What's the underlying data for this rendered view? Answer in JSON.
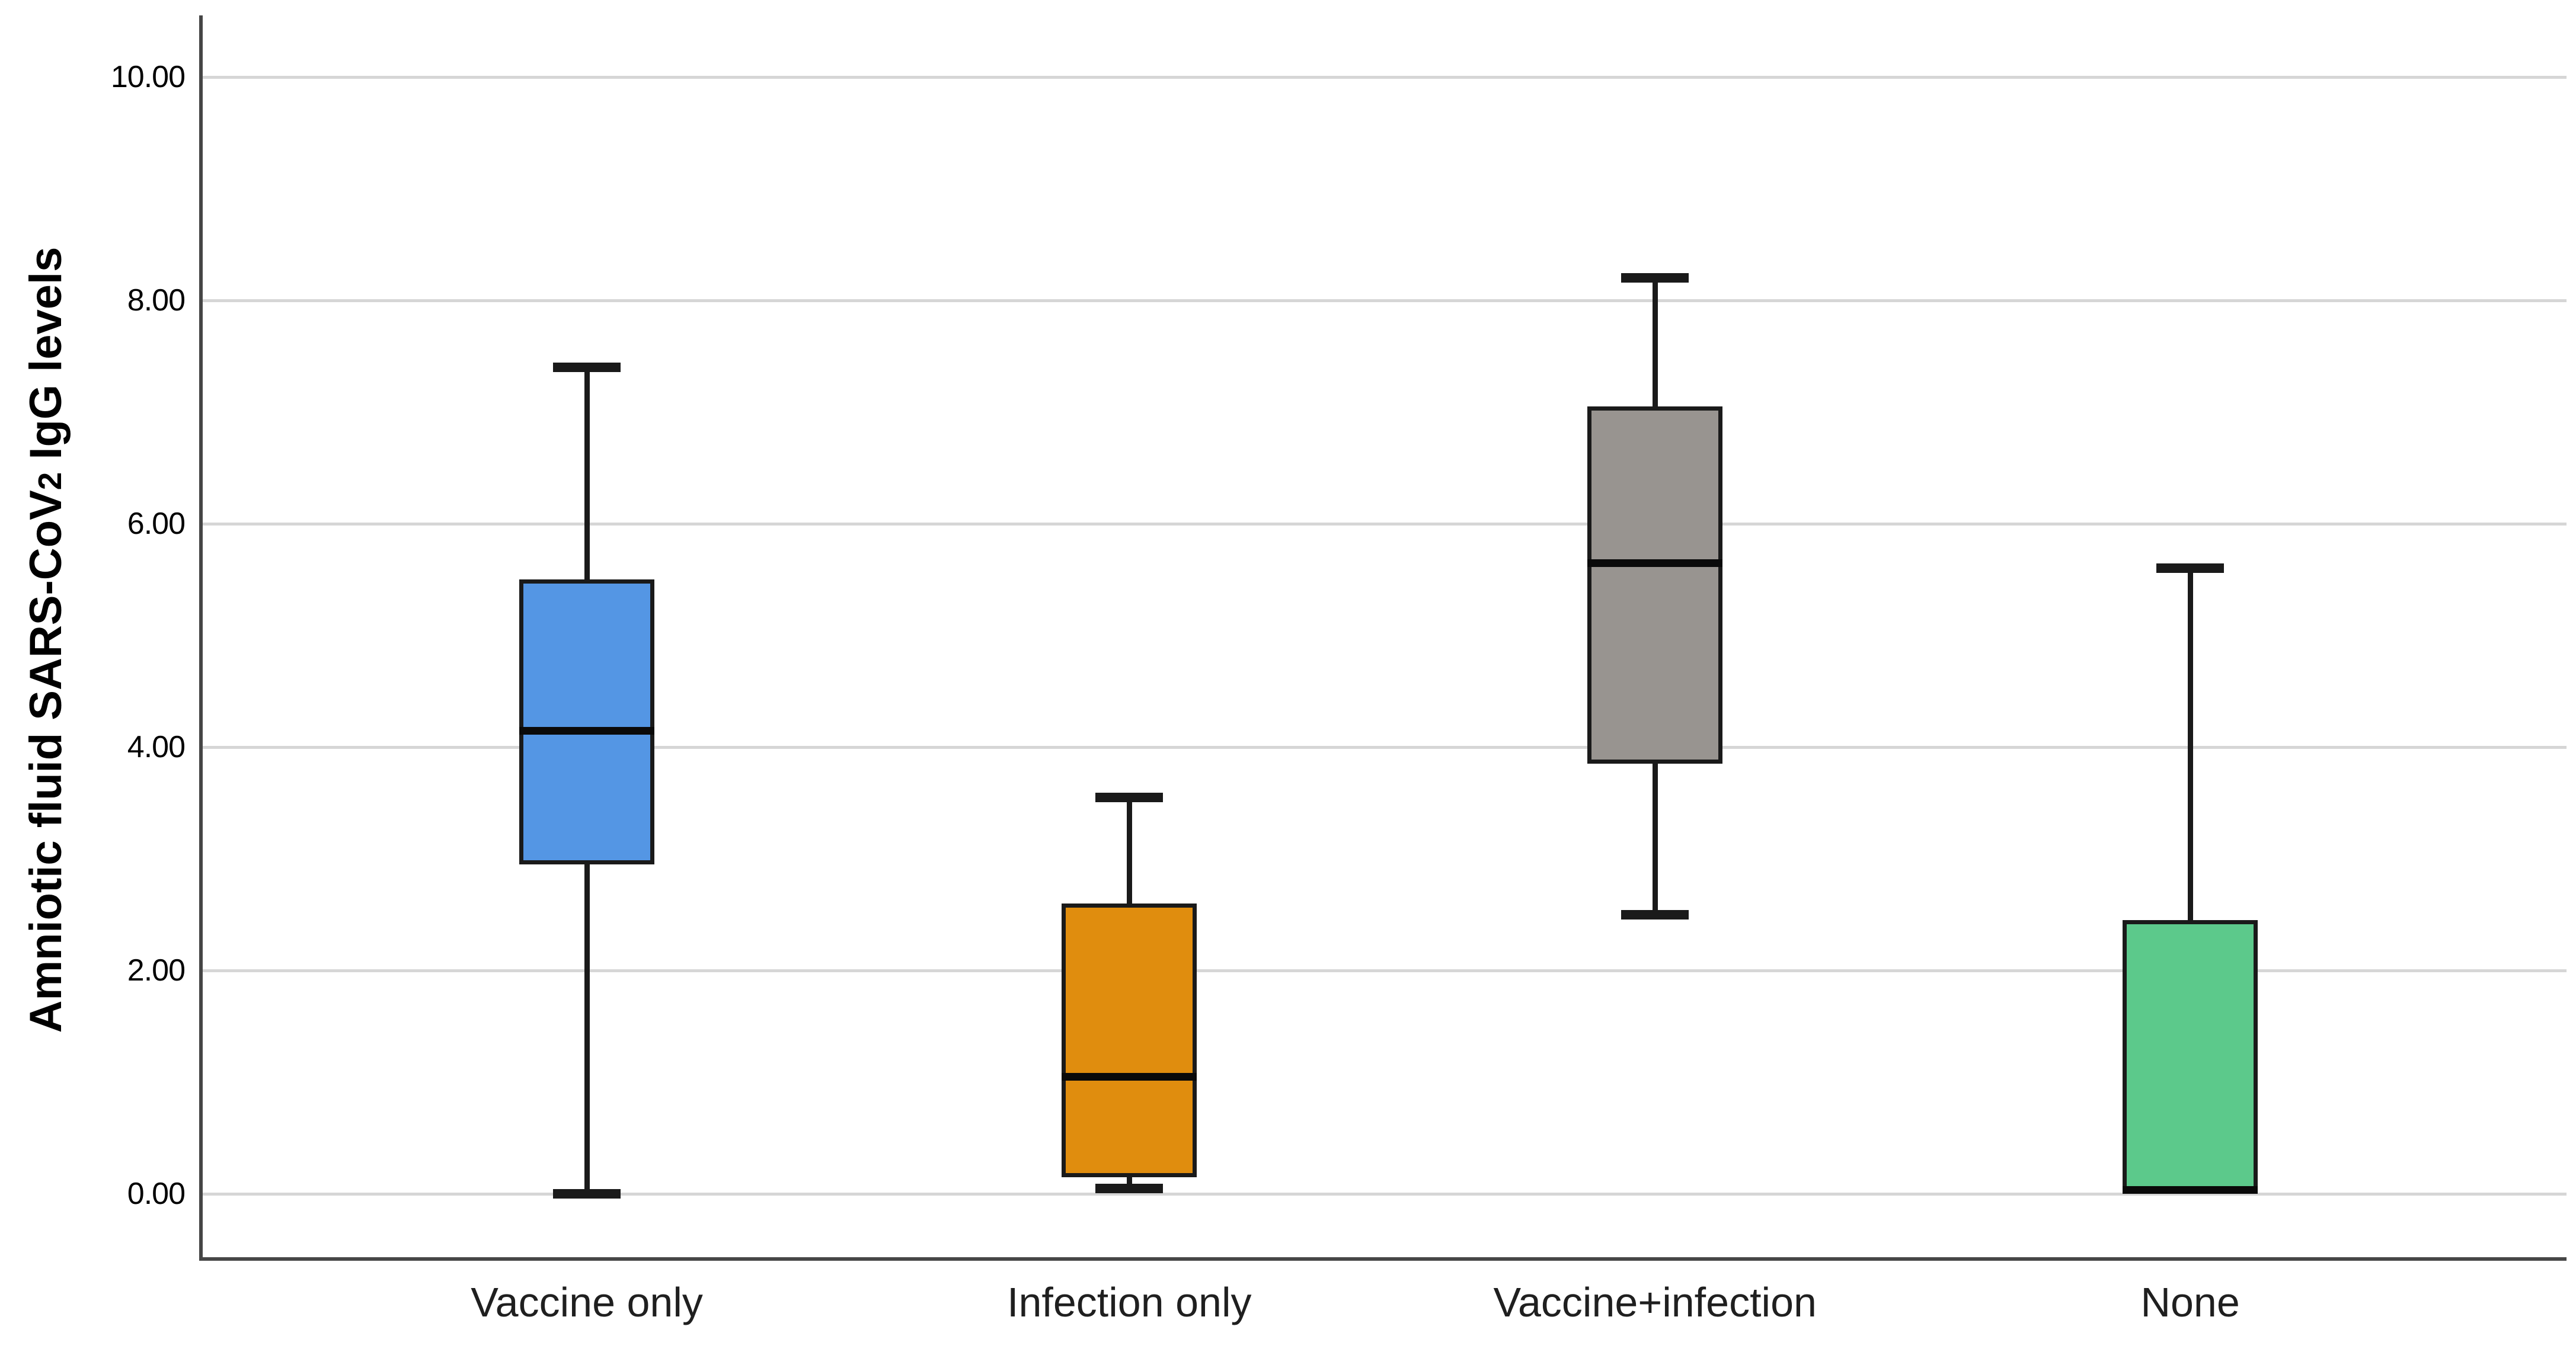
{
  "figure": {
    "y_axis_title": {
      "pre": "Amniotic fluid SARS-CoV",
      "sub": "2",
      "post": " IgG levels",
      "full": "Amniotic fluid SARS-CoV2 IgG levels"
    }
  },
  "chart_data": {
    "type": "boxplot",
    "title": "",
    "xlabel": "",
    "ylabel": "Amniotic fluid SARS-CoV2 IgG levels",
    "ylim": [
      -0.55,
      10.4
    ],
    "grid": true,
    "legend": "none",
    "yticks": [
      {
        "value": 0,
        "label": "0.00"
      },
      {
        "value": 2,
        "label": "2.00"
      },
      {
        "value": 4,
        "label": "4.00"
      },
      {
        "value": 6,
        "label": "6.00"
      },
      {
        "value": 8,
        "label": "8.00"
      },
      {
        "value": 10,
        "label": "10.00"
      }
    ],
    "categories": [
      "Vaccine only",
      "Infection only",
      "Vaccine+infection",
      "None"
    ],
    "series": [
      {
        "category": "Vaccine only",
        "color": "#5496E4",
        "whisker_low": 0.0,
        "q1": 2.95,
        "median": 4.15,
        "q3": 5.5,
        "whisker_high": 7.4
      },
      {
        "category": "Infection only",
        "color": "#E08D0E",
        "whisker_low": 0.05,
        "q1": 0.15,
        "median": 1.05,
        "q3": 2.6,
        "whisker_high": 3.55
      },
      {
        "category": "Vaccine+infection",
        "color": "#989490",
        "whisker_low": 2.5,
        "q1": 3.85,
        "median": 5.65,
        "q3": 7.05,
        "whisker_high": 8.2
      },
      {
        "category": "None",
        "color": "#5CC98B",
        "whisker_low": 0.0,
        "q1": 0.0,
        "median": 0.0,
        "q3": 2.45,
        "whisker_high": 5.6
      }
    ],
    "colors": {
      "box_border": "#1a1a1a",
      "median_line": "#0a0a0a",
      "whisker": "#1a1a1a",
      "gridline": "#d6d6d6",
      "axis": "#464646",
      "tick_text": "#000000",
      "category_text": "#1f1f1f",
      "background": "#ffffff"
    }
  }
}
